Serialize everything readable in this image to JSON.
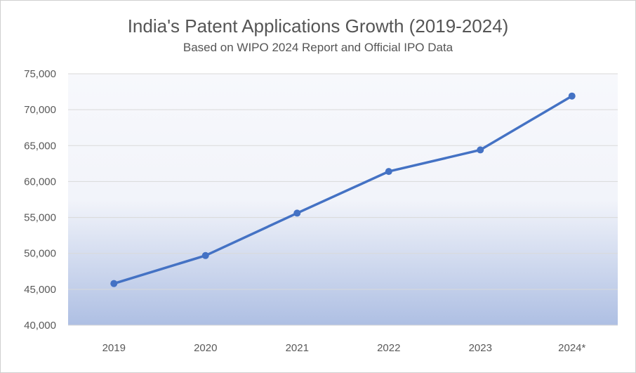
{
  "chart_data": {
    "type": "line",
    "title": "India's Patent Applications Growth (2019-2024)",
    "subtitle": "Based on WIPO 2024 Report and Official IPO Data",
    "xlabel": "",
    "ylabel": "",
    "categories": [
      "2019",
      "2020",
      "2021",
      "2022",
      "2023",
      "2024*"
    ],
    "series": [
      {
        "values": [
          45800,
          49700,
          55600,
          61400,
          64400,
          71900
        ]
      }
    ],
    "ylim": [
      40000,
      75000
    ],
    "yticks": [
      40000,
      45000,
      50000,
      55000,
      60000,
      65000,
      70000,
      75000
    ],
    "ytick_labels": [
      "40,000",
      "45,000",
      "50,000",
      "55,000",
      "60,000",
      "65,000",
      "70,000",
      "75,000"
    ],
    "grid": true,
    "legend": "none",
    "colors": {
      "line": "#4472C4",
      "grid": "#d9d9d9",
      "plot_top": "#f6f7fb",
      "plot_bottom": "#aebfe3"
    }
  }
}
